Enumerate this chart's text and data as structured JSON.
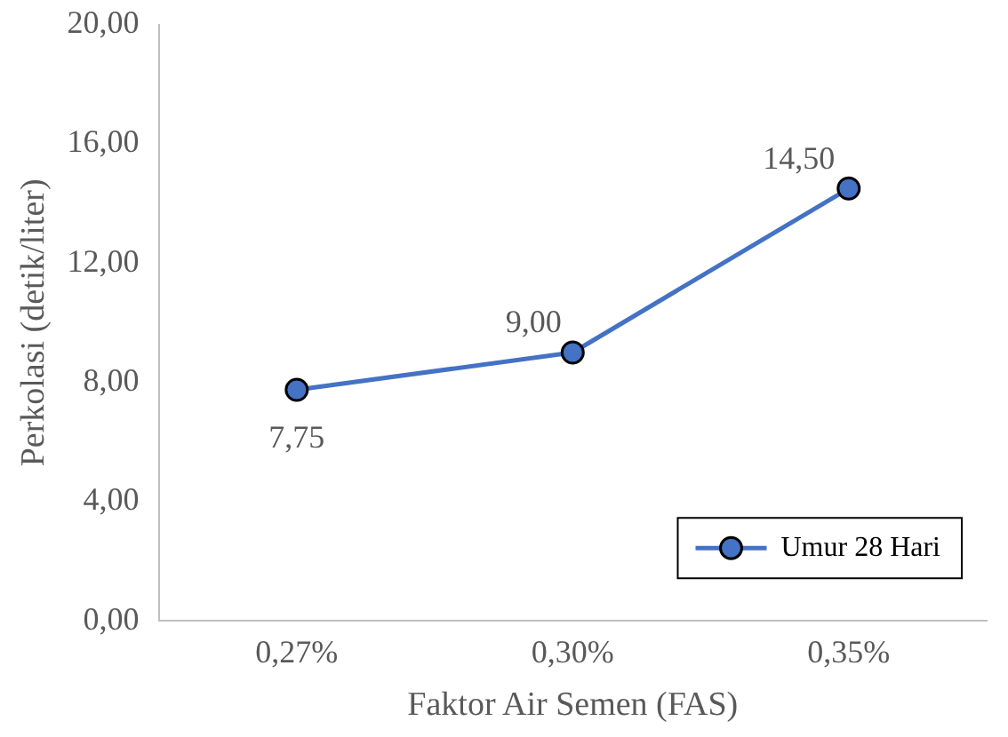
{
  "chart_data": {
    "type": "line",
    "xlabel": "Faktor Air Semen (FAS)",
    "ylabel": "Perkolasi (detik/liter)",
    "categories": [
      "0,27%",
      "0,30%",
      "0,35%"
    ],
    "series": [
      {
        "name": "Umur 28 Hari",
        "color": "#4472c4",
        "values": [
          7.75,
          9.0,
          14.5
        ],
        "value_labels": [
          "7,75",
          "9,00",
          "14,50"
        ]
      }
    ],
    "ylim": [
      0,
      20
    ],
    "yticks": [
      {
        "value": 0,
        "label": "0,00"
      },
      {
        "value": 4,
        "label": "4,00"
      },
      {
        "value": 8,
        "label": "8,00"
      },
      {
        "value": 12,
        "label": "12,00"
      },
      {
        "value": 16,
        "label": "16,00"
      },
      {
        "value": 20,
        "label": "20,00"
      }
    ],
    "grid": false,
    "legend": "bottom right",
    "marker": "circle",
    "line_style": "solid"
  }
}
